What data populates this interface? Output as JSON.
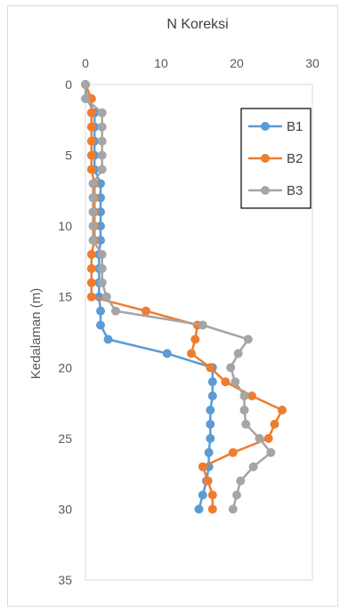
{
  "chart_data": {
    "type": "scatter",
    "title": "N Koreksi",
    "xlabel": "",
    "ylabel": "Kedalaman (m)",
    "xlim": [
      0,
      30
    ],
    "ylim": [
      0,
      35
    ],
    "y_inverted": true,
    "x_axis_position": "top",
    "x_ticks": [
      "0",
      "10",
      "20",
      "30"
    ],
    "y_ticks": [
      "0",
      "5",
      "10",
      "15",
      "20",
      "25",
      "30",
      "35"
    ],
    "grid": false,
    "legend_position": "top-right",
    "series": [
      {
        "name": "B1",
        "color": "#5B9BD5",
        "points": [
          [
            0,
            0
          ],
          [
            0.2,
            1
          ],
          [
            1.2,
            2
          ],
          [
            1.2,
            3
          ],
          [
            1.2,
            4
          ],
          [
            1.2,
            5
          ],
          [
            1.2,
            6
          ],
          [
            2,
            7
          ],
          [
            2,
            8
          ],
          [
            2,
            9
          ],
          [
            2,
            10
          ],
          [
            2,
            11
          ],
          [
            1.8,
            12
          ],
          [
            1.8,
            13
          ],
          [
            1.8,
            14
          ],
          [
            1.8,
            15
          ],
          [
            2,
            16
          ],
          [
            2,
            17
          ],
          [
            3,
            18
          ],
          [
            10.8,
            19
          ],
          [
            16.8,
            20
          ],
          [
            16.8,
            21
          ],
          [
            16.8,
            22
          ],
          [
            16.5,
            23
          ],
          [
            16.5,
            24
          ],
          [
            16.5,
            25
          ],
          [
            16.3,
            26
          ],
          [
            16.3,
            27
          ],
          [
            16.0,
            28
          ],
          [
            15.5,
            29
          ],
          [
            15.0,
            30
          ]
        ]
      },
      {
        "name": "B2",
        "color": "#ED7D31",
        "points": [
          [
            0,
            0
          ],
          [
            0.8,
            1
          ],
          [
            0.8,
            2
          ],
          [
            0.8,
            3
          ],
          [
            0.8,
            4
          ],
          [
            0.8,
            5
          ],
          [
            0.8,
            6
          ],
          [
            1.2,
            7
          ],
          [
            1.2,
            8
          ],
          [
            1.2,
            9
          ],
          [
            1.2,
            10
          ],
          [
            1.2,
            11
          ],
          [
            0.8,
            12
          ],
          [
            0.8,
            13
          ],
          [
            0.8,
            14
          ],
          [
            0.8,
            15
          ],
          [
            8,
            16
          ],
          [
            14.8,
            17
          ],
          [
            14.5,
            18
          ],
          [
            14.0,
            19
          ],
          [
            16.5,
            20
          ],
          [
            18.5,
            21
          ],
          [
            22,
            22
          ],
          [
            26,
            23
          ],
          [
            25,
            24
          ],
          [
            24.2,
            25
          ],
          [
            19.5,
            26
          ],
          [
            15.5,
            27
          ],
          [
            16.2,
            28
          ],
          [
            16.8,
            29
          ],
          [
            16.8,
            30
          ]
        ]
      },
      {
        "name": "B3",
        "color": "#A5A5A5",
        "points": [
          [
            0,
            0
          ],
          [
            0,
            1
          ],
          [
            2.2,
            2
          ],
          [
            2.2,
            3
          ],
          [
            2.2,
            4
          ],
          [
            2.2,
            5
          ],
          [
            2.2,
            6
          ],
          [
            1,
            7
          ],
          [
            1,
            8
          ],
          [
            1,
            9
          ],
          [
            1,
            10
          ],
          [
            1,
            11
          ],
          [
            2.2,
            12
          ],
          [
            2.2,
            13
          ],
          [
            2.2,
            14
          ],
          [
            2.8,
            15
          ],
          [
            4,
            16
          ],
          [
            15.5,
            17
          ],
          [
            21.5,
            18
          ],
          [
            20.2,
            19
          ],
          [
            19.2,
            20
          ],
          [
            19.8,
            21
          ],
          [
            21,
            22
          ],
          [
            21,
            23
          ],
          [
            21.2,
            24
          ],
          [
            23,
            25
          ],
          [
            24.5,
            26
          ],
          [
            22.2,
            27
          ],
          [
            20.5,
            28
          ],
          [
            20,
            29
          ],
          [
            19.5,
            30
          ]
        ]
      }
    ]
  }
}
